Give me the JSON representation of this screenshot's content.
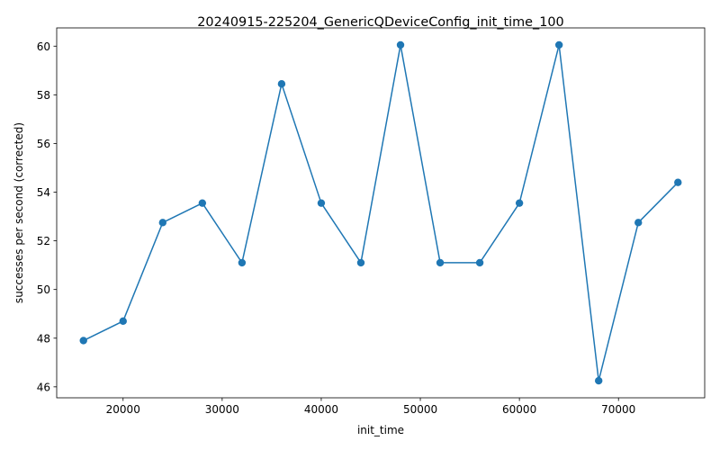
{
  "chart_data": {
    "type": "line",
    "title": "20240915-225204_GenericQDeviceConfig_init_time_100",
    "xlabel": "init_time",
    "ylabel": "successes per second (corrected)",
    "xlim": [
      13300,
      78700
    ],
    "ylim": [
      45.55,
      60.75
    ],
    "xticks": [
      20000,
      30000,
      40000,
      50000,
      60000,
      70000
    ],
    "yticks": [
      46,
      48,
      50,
      52,
      54,
      56,
      58,
      60
    ],
    "grid": false,
    "line_color": "#1f77b4",
    "series": [
      {
        "x": [
          16000,
          20000,
          24000,
          28000,
          32000,
          36000,
          40000,
          44000,
          48000,
          52000,
          56000,
          60000,
          64000,
          68000,
          72000,
          76000
        ],
        "y": [
          47.9,
          48.7,
          52.75,
          53.55,
          51.1,
          58.45,
          53.55,
          51.1,
          60.05,
          51.1,
          51.1,
          53.55,
          60.05,
          46.25,
          52.75,
          54.4
        ]
      }
    ]
  }
}
